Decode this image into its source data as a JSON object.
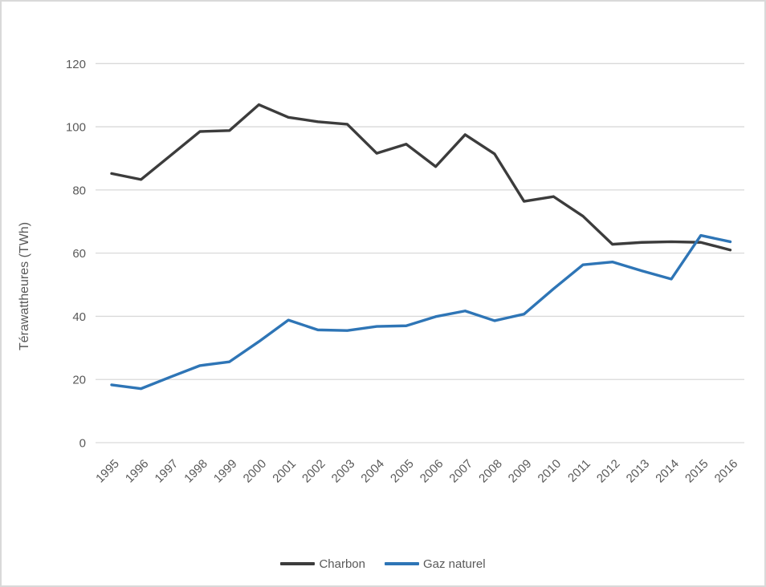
{
  "chart_data": {
    "type": "line",
    "title": "",
    "xlabel": "",
    "ylabel": "Térawattheures (TWh)",
    "ylim": [
      0,
      120
    ],
    "yticks": [
      0,
      20,
      40,
      60,
      80,
      100,
      120
    ],
    "grid": true,
    "legend_position": "bottom",
    "x": [
      "1995",
      "1996",
      "1997",
      "1998",
      "1999",
      "2000",
      "2001",
      "2002",
      "2003",
      "2004",
      "2005",
      "2006",
      "2007",
      "2008",
      "2009",
      "2010",
      "2011",
      "2012",
      "2013",
      "2014",
      "2015",
      "2016"
    ],
    "series": [
      {
        "name": "Charbon",
        "color": "#3C3C3C",
        "values": [
          85.2,
          83.3,
          90.9,
          98.5,
          98.8,
          107.0,
          103.0,
          101.6,
          100.8,
          91.6,
          94.5,
          87.4,
          97.5,
          91.4,
          76.4,
          77.9,
          71.7,
          62.8,
          63.4,
          63.6,
          63.4,
          61.0
        ]
      },
      {
        "name": "Gaz naturel",
        "color": "#2E75B6",
        "values": [
          18.3,
          17.1,
          20.8,
          24.4,
          25.6,
          32.0,
          38.8,
          35.7,
          35.5,
          36.8,
          37.0,
          39.9,
          41.7,
          38.6,
          40.7,
          48.7,
          56.3,
          57.2,
          54.4,
          51.8,
          65.6,
          63.6
        ]
      }
    ],
    "colors": {
      "grid": "#D9D9D9",
      "text": "#595959",
      "border": "#D9D9D9",
      "background": "#FFFFFF"
    }
  }
}
